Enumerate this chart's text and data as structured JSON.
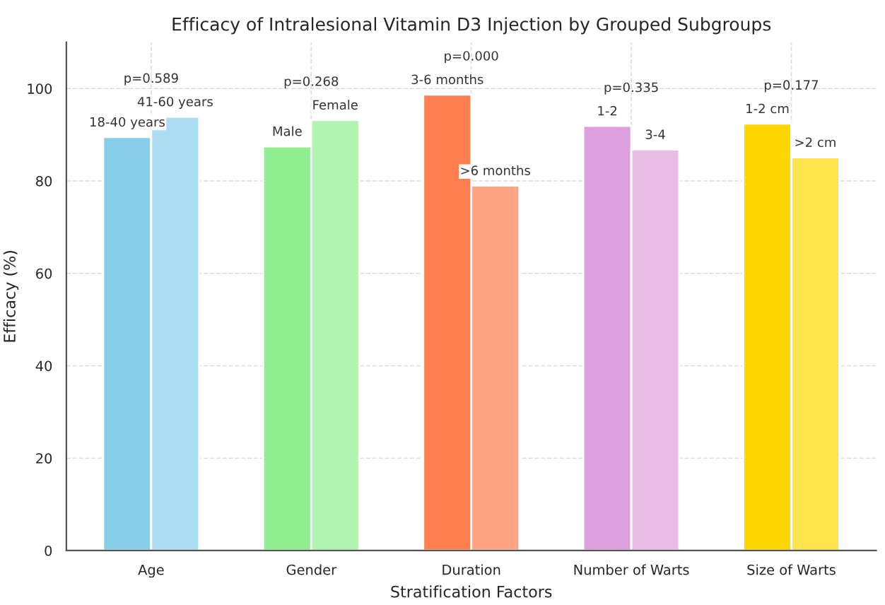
{
  "chart_data": {
    "type": "bar",
    "title": "Efficacy of Intralesional Vitamin D3 Injection by Grouped Subgroups",
    "xlabel": "Stratification Factors",
    "ylabel": "Efficacy (%)",
    "categories": [
      "Age",
      "Gender",
      "Duration",
      "Number of Warts",
      "Size of Warts"
    ],
    "series": [
      {
        "colors": [
          "#87ceeb",
          "#90ee90",
          "#ff7f50",
          "#dda0dd",
          "#ffd700"
        ],
        "values": [
          89.5,
          87.5,
          98.7,
          91.9,
          92.4
        ],
        "value_labels": [
          "18-40 years",
          "Male",
          "3-6 months",
          "1-2",
          "1-2 cm"
        ]
      },
      {
        "colors": [
          "#abdcf1",
          "#b1f3b1",
          "#ffa585",
          "#e7bde7",
          "#ffe34d"
        ],
        "values": [
          93.9,
          93.2,
          79.0,
          86.8,
          85.1
        ],
        "value_labels": [
          "41-60 years",
          "Female",
          ">6 months",
          "3-4",
          ">2 cm"
        ]
      }
    ],
    "annotations": [
      {
        "text": "p=0.589",
        "x": "Age",
        "y": 93.9
      },
      {
        "text": "p=0.268",
        "x": "Gender",
        "y": 93.2
      },
      {
        "text": "p=0.000",
        "x": "Duration",
        "y": 98.7
      },
      {
        "text": "p=0.335",
        "x": "Number of Warts",
        "y": 91.9
      },
      {
        "text": "p=0.177",
        "x": "Size of Warts",
        "y": 92.4
      }
    ],
    "ylim": [
      0,
      110
    ],
    "yticks": [
      0,
      20,
      40,
      60,
      80,
      100
    ],
    "grid": true
  }
}
